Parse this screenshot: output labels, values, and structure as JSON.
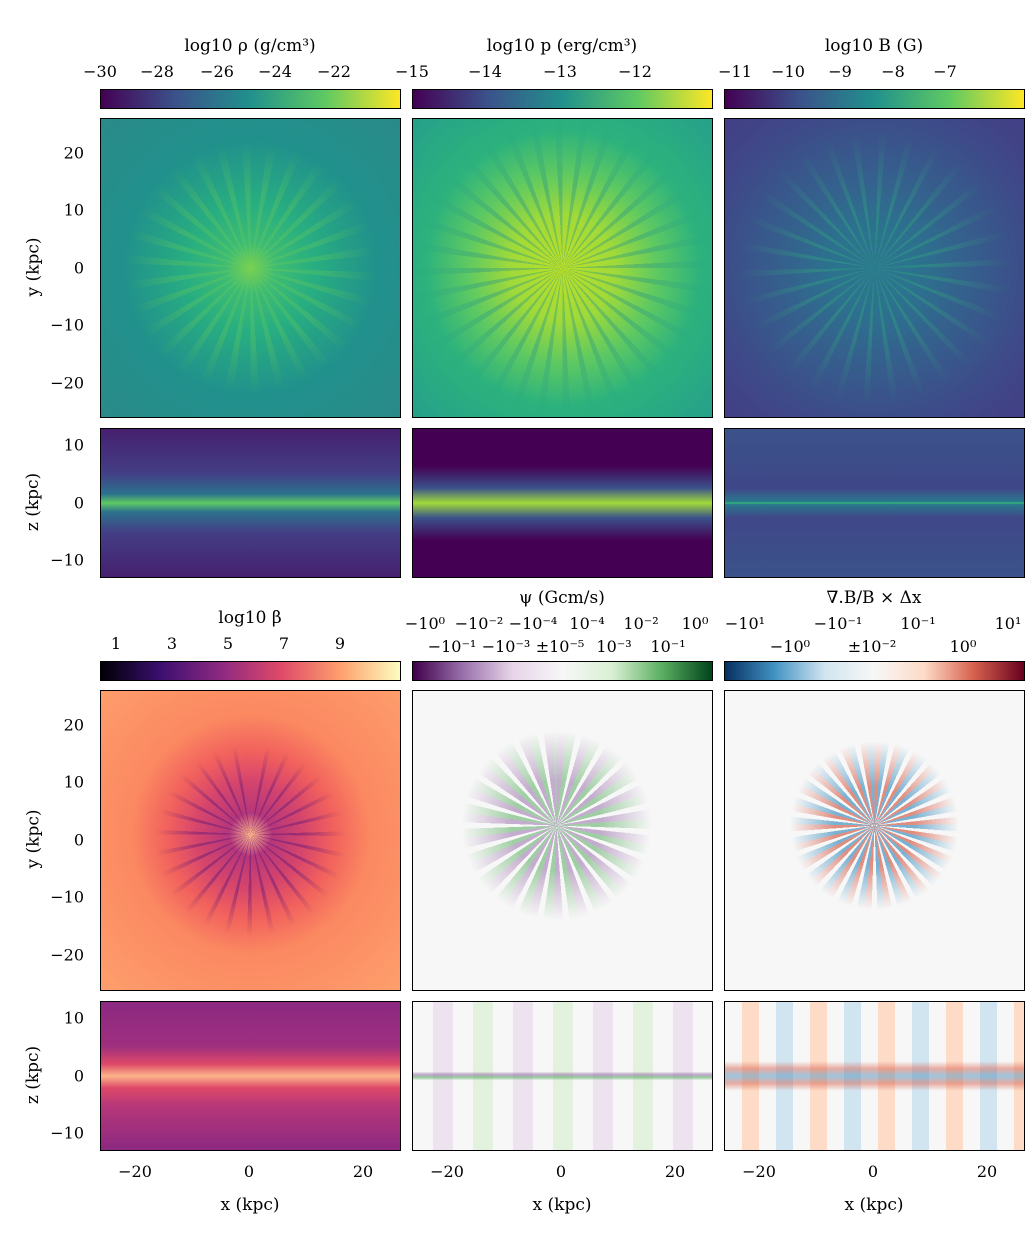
{
  "chart_data": [
    {
      "type": "heatmap",
      "title": "log10 ρ (g/cm³)",
      "colormap": "viridis",
      "colorbar_ticks": [
        "−30",
        "−28",
        "−26",
        "−24",
        "−22"
      ],
      "colorbar_range": [
        -30,
        -19.8
      ],
      "panels": [
        "xy",
        "xz"
      ]
    },
    {
      "type": "heatmap",
      "title": "log10 p (erg/cm³)",
      "colormap": "viridis",
      "colorbar_ticks": [
        "−15",
        "−14",
        "−13",
        "−12"
      ],
      "colorbar_range": [
        -15,
        -11
      ],
      "panels": [
        "xy",
        "xz"
      ]
    },
    {
      "type": "heatmap",
      "title": "log10 B (G)",
      "colormap": "viridis",
      "colorbar_ticks": [
        "−11",
        "−10",
        "−9",
        "−8",
        "−7"
      ],
      "colorbar_range": [
        -11.2,
        -6.4
      ],
      "panels": [
        "xy",
        "xz"
      ]
    },
    {
      "type": "heatmap",
      "title": "log10 β",
      "colormap": "magma",
      "colorbar_ticks": [
        "1",
        "3",
        "5",
        "7",
        "9"
      ],
      "colorbar_range": [
        0.4,
        11
      ],
      "panels": [
        "xy",
        "xz"
      ]
    },
    {
      "type": "heatmap",
      "title": "ψ (Gcm/s)",
      "colormap": "PRGn",
      "colorbar_ticks": [
        "−10⁰",
        "−10⁻¹",
        "−10⁻²",
        "−10⁻³",
        "−10⁻⁴",
        "±10⁻⁵",
        "10⁻⁴",
        "10⁻³",
        "10⁻²",
        "10⁻¹",
        "10⁰"
      ],
      "scale": "symlog",
      "panels": [
        "xy",
        "xz"
      ]
    },
    {
      "type": "heatmap",
      "title": "∇.B/B × Δx",
      "colormap": "RdBu_r",
      "colorbar_ticks": [
        "−10¹",
        "−10⁰",
        "−10⁻¹",
        "±10⁻²",
        "10⁻¹",
        "10⁰",
        "10¹"
      ],
      "scale": "symlog",
      "panels": [
        "xy",
        "xz"
      ]
    }
  ],
  "axes": {
    "xlabel": "x (kpc)",
    "ylabel_xy": "y (kpc)",
    "ylabel_xz": "z (kpc)",
    "x_ticks": [
      "−20",
      "0",
      "20"
    ],
    "y_ticks": [
      "20",
      "10",
      "0",
      "−10",
      "−20"
    ],
    "z_ticks": [
      "10",
      "0",
      "−10"
    ],
    "xlim": [
      -26,
      26
    ],
    "ylim": [
      -26,
      26
    ],
    "zlim": [
      -13,
      13
    ]
  },
  "colors": {
    "viridis": [
      "#440154",
      "#3b528b",
      "#21918c",
      "#5ec962",
      "#fde725"
    ],
    "magma": [
      "#000004",
      "#3b0f70",
      "#8c2981",
      "#de4968",
      "#fe9f6d",
      "#fcfdbf"
    ],
    "PRGn": [
      "#40004b",
      "#9970ab",
      "#e7d4e8",
      "#f7f7f7",
      "#d9f0d3",
      "#5aae61",
      "#00441b"
    ],
    "RdBu_r": [
      "#053061",
      "#4393c3",
      "#d1e5f0",
      "#f7f7f7",
      "#fddbc7",
      "#d6604d",
      "#67001f"
    ]
  }
}
